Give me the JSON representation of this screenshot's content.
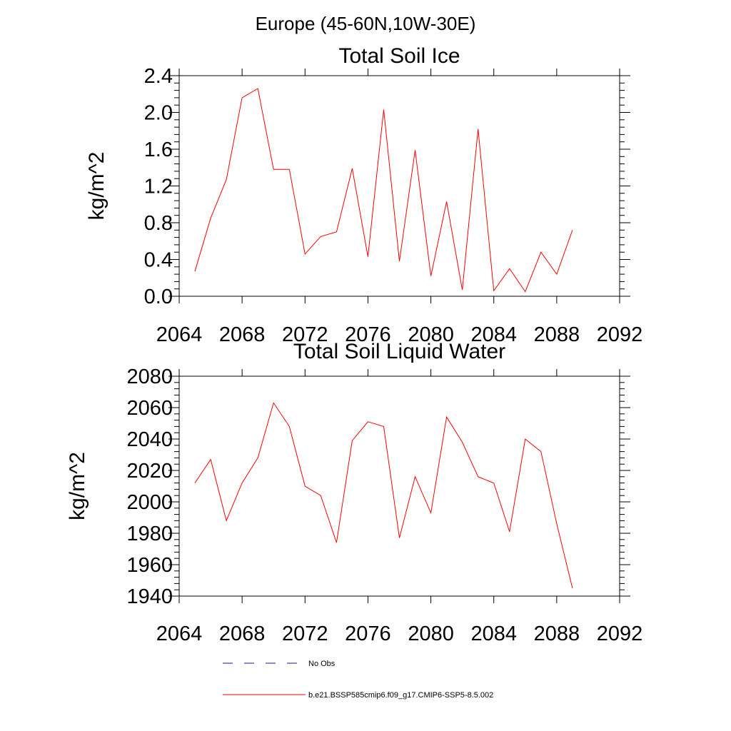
{
  "page": {
    "title": "Europe (45-60N,10W-30E)"
  },
  "chart_data": [
    {
      "type": "line",
      "title": "Total Soil Ice",
      "xlabel": "",
      "ylabel": "kg/m^2",
      "xlim": [
        2064,
        2092
      ],
      "ylim": [
        0.0,
        2.4
      ],
      "xticks": [
        "2064",
        "2068",
        "2072",
        "2076",
        "2080",
        "2084",
        "2088",
        "2092"
      ],
      "yticks": [
        "0.0",
        "0.4",
        "0.8",
        "1.2",
        "1.6",
        "2.0",
        "2.4"
      ],
      "grid": false,
      "series": [
        {
          "name": "b.e21.BSSP585cmip6.f09_g17.CMIP6-SSP5-8.5.002",
          "color": "#ff0000",
          "x": [
            2065,
            2066,
            2067,
            2068,
            2069,
            2070,
            2071,
            2072,
            2073,
            2074,
            2075,
            2076,
            2077,
            2078,
            2079,
            2080,
            2081,
            2082,
            2083,
            2084,
            2085,
            2086,
            2087,
            2088,
            2089
          ],
          "y": [
            0.27,
            0.85,
            1.27,
            2.16,
            2.26,
            1.38,
            1.38,
            0.46,
            0.65,
            0.7,
            1.39,
            0.43,
            2.03,
            0.38,
            1.59,
            0.22,
            1.03,
            0.07,
            1.82,
            0.06,
            0.3,
            0.05,
            0.48,
            0.24,
            0.72
          ]
        }
      ]
    },
    {
      "type": "line",
      "title": "Total Soil Liquid Water",
      "xlabel": "",
      "ylabel": "kg/m^2",
      "xlim": [
        2064,
        2092
      ],
      "ylim": [
        1940,
        2080
      ],
      "xticks": [
        "2064",
        "2068",
        "2072",
        "2076",
        "2080",
        "2084",
        "2088",
        "2092"
      ],
      "yticks": [
        "1940",
        "1960",
        "1980",
        "2000",
        "2020",
        "2040",
        "2060",
        "2080"
      ],
      "grid": false,
      "series": [
        {
          "name": "b.e21.BSSP585cmip6.f09_g17.CMIP6-SSP5-8.5.002",
          "color": "#ff0000",
          "x": [
            2065,
            2066,
            2067,
            2068,
            2069,
            2070,
            2071,
            2072,
            2073,
            2074,
            2075,
            2076,
            2077,
            2078,
            2079,
            2080,
            2081,
            2082,
            2083,
            2084,
            2085,
            2086,
            2087,
            2088,
            2089
          ],
          "y": [
            2012,
            2027,
            1988,
            2012,
            2028,
            2063,
            2048,
            2010,
            2004,
            1974,
            2039,
            2051,
            2048,
            1977,
            2016,
            1993,
            2054,
            2038,
            2016,
            2012,
            1981,
            2040,
            2032,
            1986,
            1945
          ]
        }
      ]
    }
  ],
  "legend": {
    "placement": "bottom",
    "items": [
      {
        "label": "No Obs",
        "style": "dashed",
        "color": "#1a1a80"
      },
      {
        "label": "b.e21.BSSP585cmip6.f09_g17.CMIP6-SSP5-8.5.002",
        "style": "solid",
        "color": "#ff0000"
      }
    ]
  }
}
